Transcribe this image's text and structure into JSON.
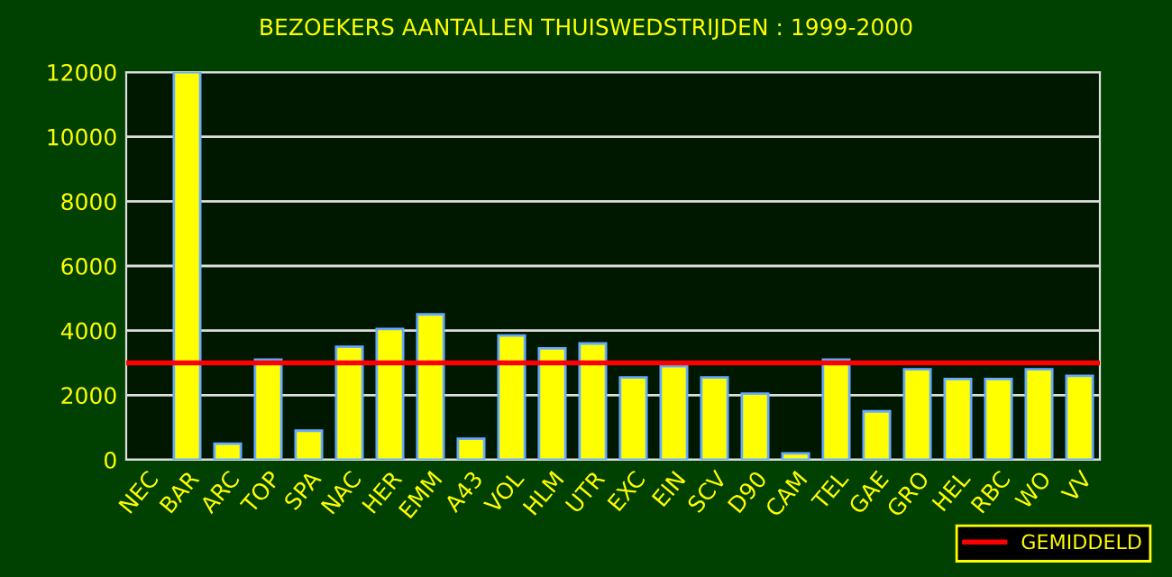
{
  "chart_data": {
    "type": "bar",
    "title": "BEZOEKERS AANTALLEN THUISWEDSTRIJDEN : 1999-2000",
    "categories": [
      "NEC",
      "BAR",
      "ARC",
      "TOP",
      "SPA",
      "NAC",
      "HER",
      "EMM",
      "A43",
      "VOL",
      "HLM",
      "UTR",
      "EXC",
      "EIN",
      "SCV",
      "D90",
      "CAM",
      "TEL",
      "GAE",
      "GRO",
      "HEL",
      "RBC",
      "WO",
      "VV"
    ],
    "values": [
      null,
      12000,
      500,
      3100,
      900,
      3500,
      4050,
      4500,
      650,
      3850,
      3450,
      3600,
      2550,
      2900,
      2550,
      2050,
      200,
      3100,
      1500,
      2800,
      2500,
      2500,
      2800,
      2600
    ],
    "color": "#ffff00",
    "ylim": [
      0,
      12000
    ],
    "yticks": [
      0,
      2000,
      4000,
      6000,
      8000,
      10000,
      12000
    ],
    "grid": "y",
    "ref_lines": [
      {
        "axis": "y",
        "value": 3000,
        "label": "GEMIDDELD",
        "color": "#ff0000"
      }
    ],
    "legend": "bottom right"
  }
}
